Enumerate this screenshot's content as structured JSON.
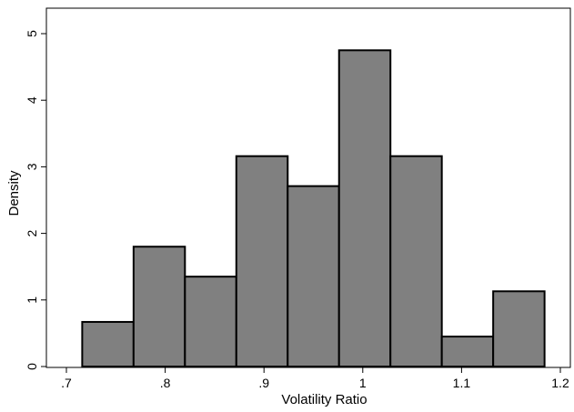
{
  "chart_data": {
    "type": "bar",
    "title": "",
    "xlabel": "Volatility Ratio",
    "ylabel": "Density",
    "xlim": [
      0.7,
      1.2
    ],
    "ylim": [
      0,
      5
    ],
    "x_ticks": [
      {
        "value": 0.7,
        "label": ".7"
      },
      {
        "value": 0.8,
        "label": ".8"
      },
      {
        "value": 0.9,
        "label": ".9"
      },
      {
        "value": 1.0,
        "label": "1"
      },
      {
        "value": 1.1,
        "label": "1.1"
      },
      {
        "value": 1.2,
        "label": "1.2"
      }
    ],
    "y_ticks": [
      {
        "value": 0,
        "label": "0"
      },
      {
        "value": 1,
        "label": "1"
      },
      {
        "value": 2,
        "label": "2"
      },
      {
        "value": 3,
        "label": "3"
      },
      {
        "value": 4,
        "label": "4"
      },
      {
        "value": 5,
        "label": "5"
      }
    ],
    "bins": [
      {
        "start": 0.716,
        "end": 0.768,
        "density": 0.67
      },
      {
        "start": 0.768,
        "end": 0.82,
        "density": 1.8
      },
      {
        "start": 0.82,
        "end": 0.872,
        "density": 1.35
      },
      {
        "start": 0.872,
        "end": 0.924,
        "density": 3.16
      },
      {
        "start": 0.924,
        "end": 0.976,
        "density": 2.71
      },
      {
        "start": 0.976,
        "end": 1.028,
        "density": 4.75
      },
      {
        "start": 1.028,
        "end": 1.08,
        "density": 3.16
      },
      {
        "start": 1.08,
        "end": 1.132,
        "density": 0.45
      },
      {
        "start": 1.132,
        "end": 1.184,
        "density": 1.13
      }
    ],
    "grid": false,
    "colors": {
      "bar_fill": "#808080",
      "bar_stroke": "#000000"
    }
  }
}
